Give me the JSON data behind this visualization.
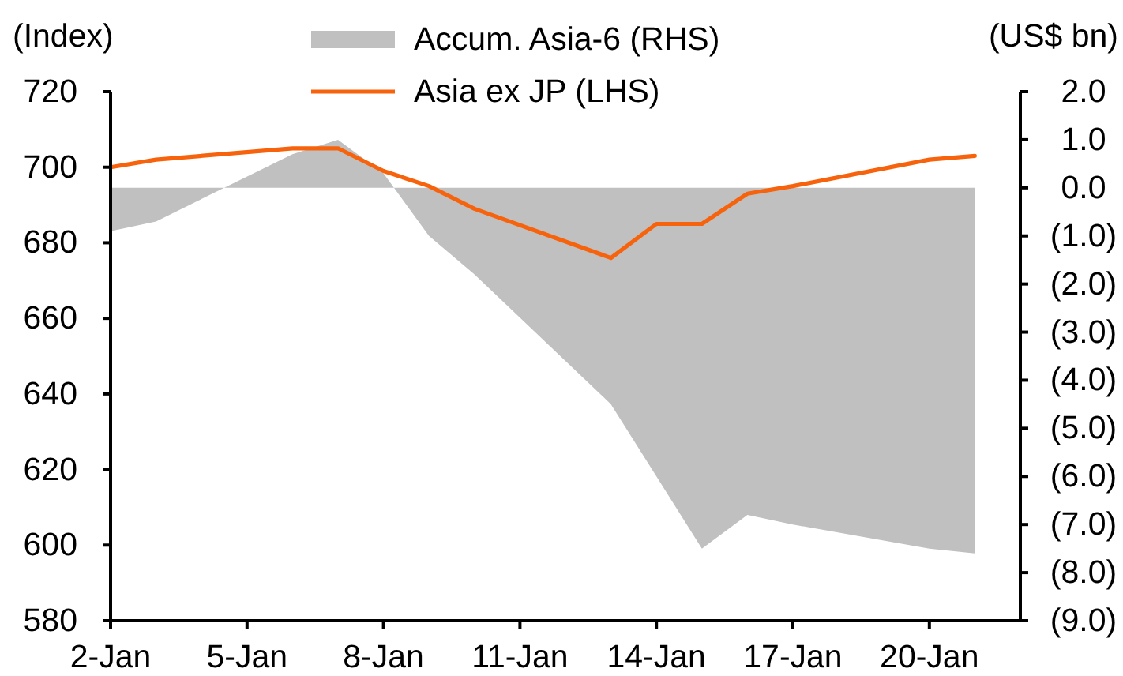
{
  "chart_data": {
    "type": "line",
    "x": [
      "--01-02",
      "--01-03",
      "--01-06",
      "--01-07",
      "--01-08",
      "--01-09",
      "--01-10",
      "--01-13",
      "--01-14",
      "--01-15",
      "--01-16",
      "--01-17",
      "--01-20",
      "--01-21"
    ],
    "series": [
      {
        "name": "Accum. Asia-6 (RHS)",
        "type": "area",
        "axis": "y2",
        "color": "#c0c0c0",
        "values": [
          -0.9,
          -0.7,
          0.7,
          1.0,
          0.3,
          -1.0,
          -1.8,
          -4.5,
          -6.0,
          -7.5,
          -6.8,
          -7.0,
          -7.5,
          -7.6
        ]
      },
      {
        "name": "Asia ex JP (LHS)",
        "color": "#f7630c",
        "values": [
          700,
          702,
          705,
          705,
          699,
          695,
          689,
          676,
          685,
          685,
          693,
          695,
          702,
          703
        ]
      }
    ],
    "ylabel": "(Index)",
    "y2label": "(US$ bn)",
    "xlim": [
      "--01-02",
      "--01-22"
    ],
    "xticks": [
      {
        "value": "--01-02",
        "label": "2-Jan"
      },
      {
        "value": "--01-05",
        "label": "5-Jan"
      },
      {
        "value": "--01-08",
        "label": "8-Jan"
      },
      {
        "value": "--01-11",
        "label": "11-Jan"
      },
      {
        "value": "--01-14",
        "label": "14-Jan"
      },
      {
        "value": "--01-17",
        "label": "17-Jan"
      },
      {
        "value": "--01-20",
        "label": "20-Jan"
      }
    ],
    "ylim": [
      580,
      720
    ],
    "yticks": [
      580,
      600,
      620,
      640,
      660,
      680,
      700,
      720
    ],
    "y2lim": [
      -9,
      2
    ],
    "y2ticks": [
      {
        "value": -9,
        "label": "(9.0)"
      },
      {
        "value": -8,
        "label": "(8.0)"
      },
      {
        "value": -7,
        "label": "(7.0)"
      },
      {
        "value": -6,
        "label": "(6.0)"
      },
      {
        "value": -5,
        "label": "(5.0)"
      },
      {
        "value": -4,
        "label": "(4.0)"
      },
      {
        "value": -3,
        "label": "(3.0)"
      },
      {
        "value": -2,
        "label": "(2.0)"
      },
      {
        "value": -1,
        "label": "(1.0)"
      },
      {
        "value": 0,
        "label": "0.0"
      },
      {
        "value": 1,
        "label": "1.0"
      },
      {
        "value": 2,
        "label": "2.0"
      }
    ],
    "legend": "top"
  }
}
